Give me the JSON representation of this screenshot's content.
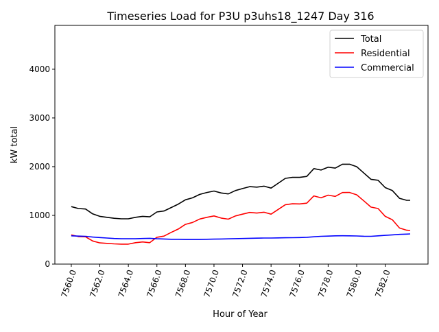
{
  "chart_data": {
    "type": "line",
    "title": "Timeseries Load for P3U p3uhs18_1247  Day 316",
    "xlabel": "Hour of Year",
    "ylabel": "kW total",
    "xlim": [
      7558.85,
      7585.0
    ],
    "ylim": [
      0,
      4900
    ],
    "xticks": [
      7560,
      7562,
      7564,
      7566,
      7568,
      7570,
      7572,
      7574,
      7576,
      7578,
      7580,
      7582
    ],
    "xtick_labels": [
      "7560.0",
      "7562.0",
      "7564.0",
      "7566.0",
      "7568.0",
      "7570.0",
      "7572.0",
      "7574.0",
      "7576.0",
      "7578.0",
      "7580.0",
      "7582.0"
    ],
    "yticks": [
      0,
      1000,
      2000,
      3000,
      4000
    ],
    "ytick_labels": [
      "0",
      "1000",
      "2000",
      "3000",
      "4000"
    ],
    "grid": false,
    "legend_position": "top-right",
    "x": [
      7560,
      7560.5,
      7561,
      7561.5,
      7562,
      7562.5,
      7563,
      7563.5,
      7564,
      7564.5,
      7565,
      7565.5,
      7566,
      7566.5,
      7567,
      7567.5,
      7568,
      7568.5,
      7569,
      7569.5,
      7570,
      7570.5,
      7571,
      7571.5,
      7572,
      7572.5,
      7573,
      7573.5,
      7574,
      7574.5,
      7575,
      7575.5,
      7576,
      7576.5,
      7577,
      7577.5,
      7578,
      7578.5,
      7579,
      7579.5,
      7580,
      7580.5,
      7581,
      7581.5,
      7582,
      7582.5,
      7583,
      7583.5,
      7583.75
    ],
    "series": [
      {
        "name": "Total",
        "color": "#000000",
        "values": [
          1180,
          1140,
          1130,
          1030,
          980,
          960,
          940,
          930,
          930,
          960,
          980,
          970,
          1070,
          1090,
          1160,
          1230,
          1320,
          1360,
          1430,
          1470,
          1500,
          1460,
          1440,
          1510,
          1550,
          1590,
          1580,
          1600,
          1560,
          1660,
          1760,
          1780,
          1780,
          1800,
          1960,
          1930,
          1990,
          1970,
          2050,
          2050,
          2000,
          1870,
          1740,
          1720,
          1570,
          1510,
          1350,
          1310,
          1310
        ]
      },
      {
        "name": "Residential",
        "color": "#ff0000",
        "values": [
          600,
          565,
          560,
          475,
          435,
          425,
          415,
          410,
          410,
          440,
          455,
          440,
          550,
          575,
          650,
          720,
          815,
          855,
          925,
          960,
          988,
          945,
          922,
          988,
          1025,
          1060,
          1048,
          1065,
          1025,
          1122,
          1220,
          1238,
          1235,
          1250,
          1400,
          1360,
          1415,
          1390,
          1468,
          1470,
          1422,
          1298,
          1170,
          1140,
          980,
          910,
          740,
          695,
          690
        ]
      },
      {
        "name": "Commercial",
        "color": "#0000ff",
        "values": [
          580,
          575,
          570,
          555,
          545,
          535,
          525,
          520,
          520,
          520,
          525,
          530,
          520,
          515,
          510,
          510,
          505,
          505,
          505,
          510,
          512,
          515,
          518,
          522,
          525,
          530,
          532,
          535,
          535,
          538,
          540,
          542,
          545,
          550,
          560,
          570,
          575,
          580,
          582,
          580,
          578,
          572,
          570,
          580,
          590,
          600,
          610,
          615,
          620
        ]
      }
    ]
  }
}
